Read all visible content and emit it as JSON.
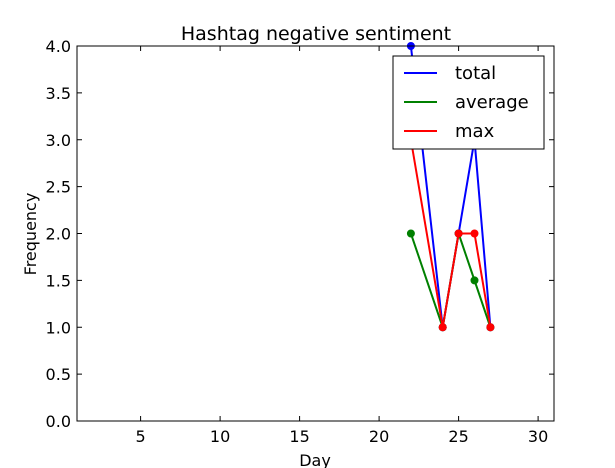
{
  "chart_data": {
    "type": "line",
    "title": "Hashtag negative sentiment",
    "xlabel": "Day",
    "ylabel": "Frequency",
    "xlim": [
      1,
      31
    ],
    "ylim": [
      0.0,
      4.0
    ],
    "xticks": [
      5,
      10,
      15,
      20,
      25,
      30
    ],
    "xtick_labels": [
      "5",
      "10",
      "15",
      "20",
      "25",
      "30"
    ],
    "yticks": [
      0.0,
      0.5,
      1.0,
      1.5,
      2.0,
      2.5,
      3.0,
      3.5,
      4.0
    ],
    "ytick_labels": [
      "0.0",
      "0.5",
      "1.0",
      "1.5",
      "2.0",
      "2.5",
      "3.0",
      "3.5",
      "4.0"
    ],
    "grid": false,
    "legend_position": "top-right",
    "series": [
      {
        "name": "total",
        "color": "#0000ff",
        "x": [
          22,
          24,
          25,
          26,
          27
        ],
        "y": [
          4,
          1,
          2,
          3,
          1
        ]
      },
      {
        "name": "average",
        "color": "#008000",
        "x": [
          22,
          24,
          25,
          26,
          27
        ],
        "y": [
          2,
          1,
          2,
          1.5,
          1
        ]
      },
      {
        "name": "max",
        "color": "#ff0000",
        "x": [
          22,
          24,
          25,
          26,
          27
        ],
        "y": [
          3,
          1,
          2,
          2,
          1
        ]
      }
    ]
  }
}
